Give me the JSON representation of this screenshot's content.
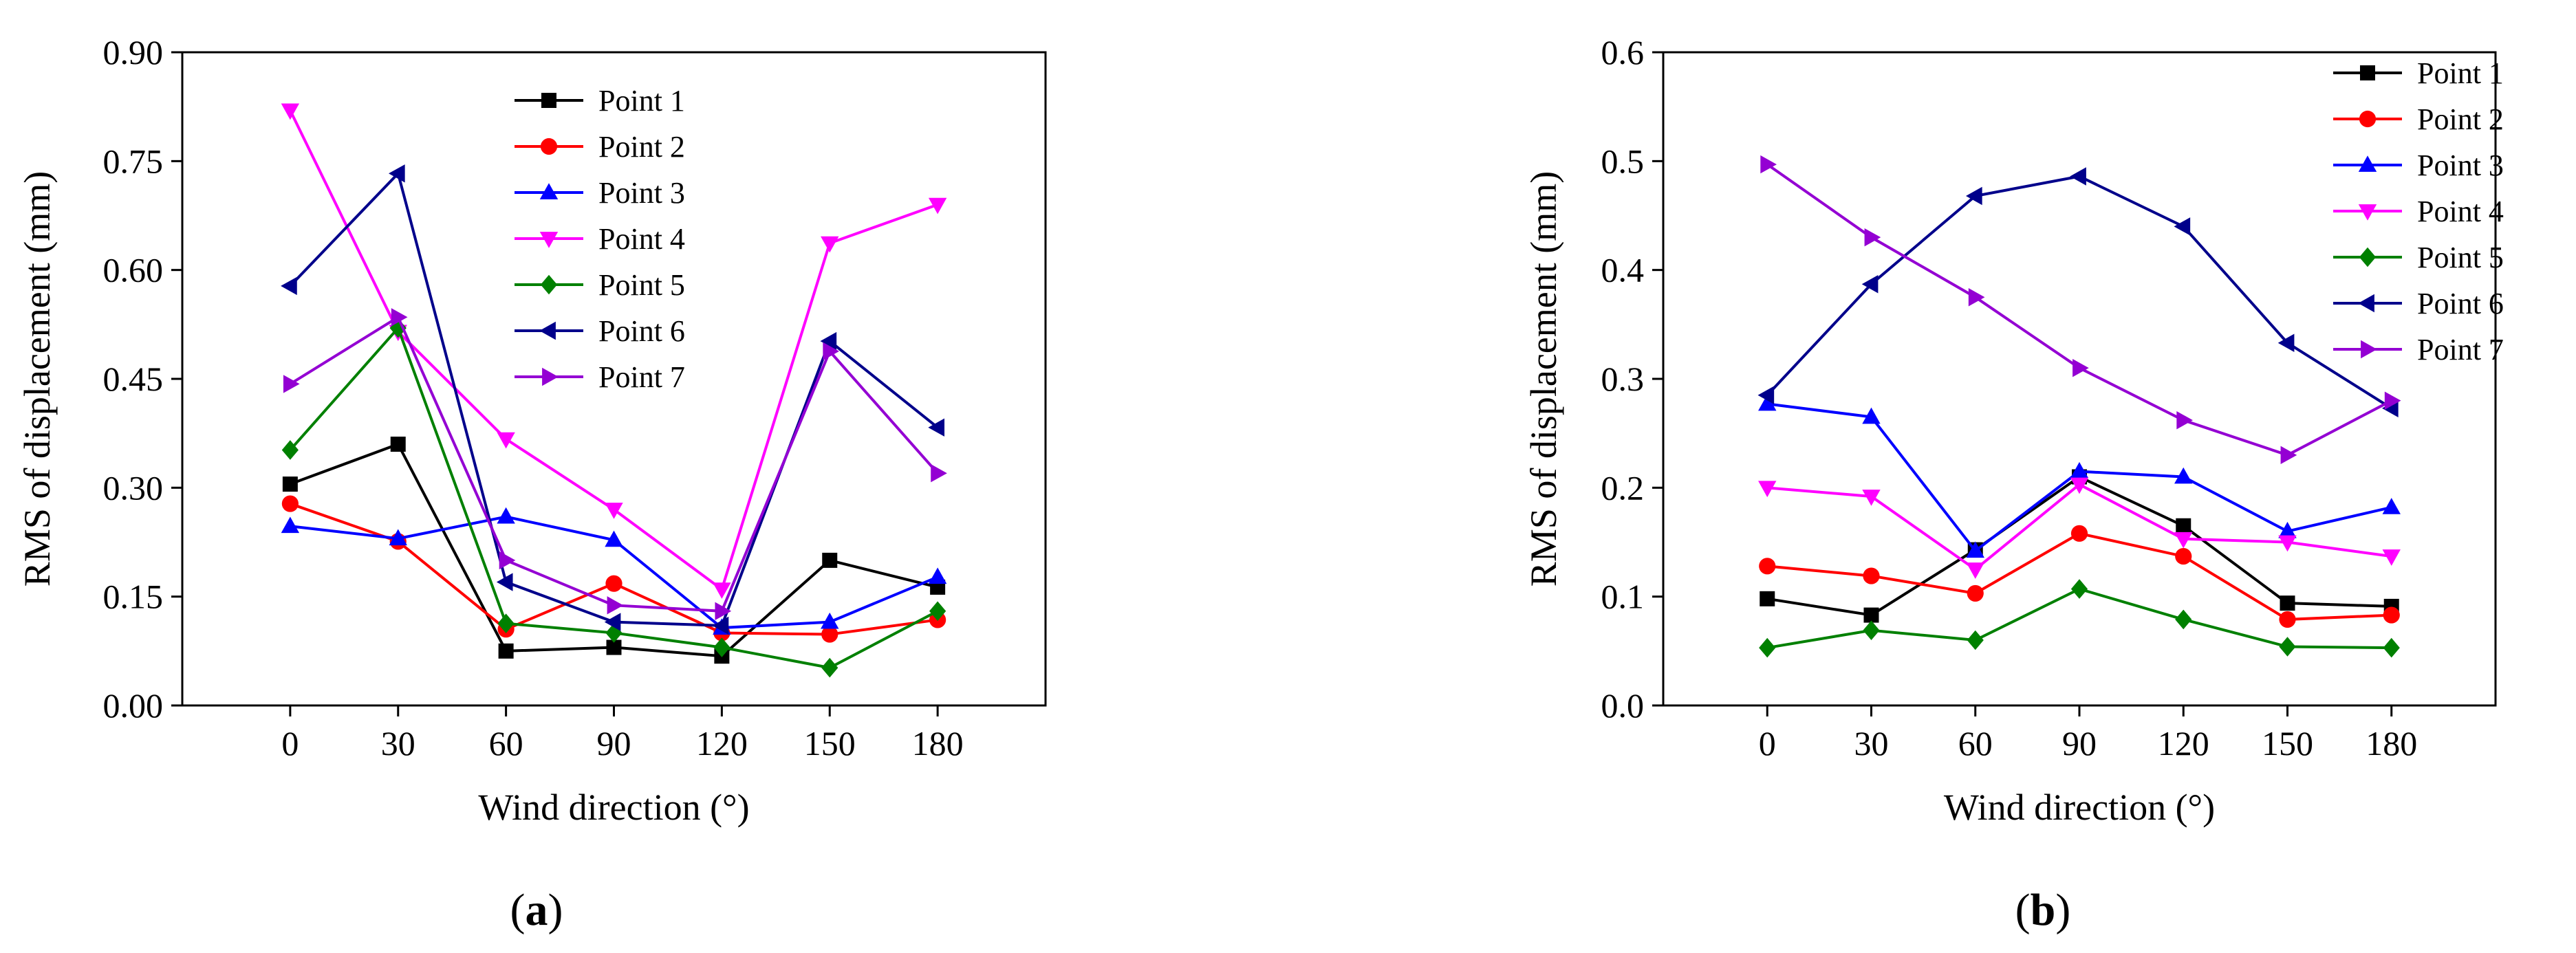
{
  "chart_data": [
    {
      "type": "line",
      "panel_label_open": "(",
      "panel_label": "a",
      "panel_label_close": ")",
      "xlabel": "Wind direction (°)",
      "ylabel": "RMS of displacement (mm)",
      "x": [
        0,
        30,
        60,
        90,
        120,
        150,
        180
      ],
      "xlim": [
        -30,
        210
      ],
      "ylim": [
        0,
        0.9
      ],
      "xticks": [
        "0",
        "30",
        "60",
        "90",
        "120",
        "150",
        "180"
      ],
      "yticks": [
        "0.00",
        "0.15",
        "0.30",
        "0.45",
        "0.60",
        "0.75",
        "0.90"
      ],
      "ytick_values": [
        0,
        0.15,
        0.3,
        0.45,
        0.6,
        0.75,
        0.9
      ],
      "legend_position": "top-center",
      "series": [
        {
          "name": "Point 1",
          "color": "#000000",
          "marker": "square",
          "values": [
            0.305,
            0.36,
            0.075,
            0.08,
            0.068,
            0.2,
            0.163
          ]
        },
        {
          "name": "Point 2",
          "color": "#ff0000",
          "marker": "circle",
          "values": [
            0.278,
            0.226,
            0.105,
            0.168,
            0.1,
            0.098,
            0.118
          ]
        },
        {
          "name": "Point 3",
          "color": "#0000ff",
          "marker": "triangle-up",
          "values": [
            0.247,
            0.23,
            0.26,
            0.228,
            0.107,
            0.115,
            0.177
          ]
        },
        {
          "name": "Point 4",
          "color": "#ff00ff",
          "marker": "triangle-down",
          "values": [
            0.82,
            0.515,
            0.367,
            0.27,
            0.16,
            0.637,
            0.69
          ]
        },
        {
          "name": "Point 5",
          "color": "#008000",
          "marker": "diamond",
          "values": [
            0.352,
            0.52,
            0.113,
            0.1,
            0.08,
            0.052,
            0.13
          ]
        },
        {
          "name": "Point 6",
          "color": "#00008b",
          "marker": "triangle-left",
          "values": [
            0.578,
            0.733,
            0.17,
            0.115,
            0.11,
            0.502,
            0.383
          ]
        },
        {
          "name": "Point 7",
          "color": "#9400d3",
          "marker": "triangle-right",
          "values": [
            0.443,
            0.535,
            0.2,
            0.138,
            0.13,
            0.488,
            0.32
          ]
        }
      ]
    },
    {
      "type": "line",
      "panel_label_open": "(",
      "panel_label": "b",
      "panel_label_close": ")",
      "xlabel": "Wind direction (°)",
      "ylabel": "RMS of displacement (mm)",
      "x": [
        0,
        30,
        60,
        90,
        120,
        150,
        180
      ],
      "xlim": [
        -30,
        210
      ],
      "ylim": [
        0,
        0.6
      ],
      "xticks": [
        "0",
        "30",
        "60",
        "90",
        "120",
        "150",
        "180"
      ],
      "yticks": [
        "0.0",
        "0.1",
        "0.2",
        "0.3",
        "0.4",
        "0.5",
        "0.6"
      ],
      "ytick_values": [
        0,
        0.1,
        0.2,
        0.3,
        0.4,
        0.5,
        0.6
      ],
      "legend_position": "top-right",
      "series": [
        {
          "name": "Point 1",
          "color": "#000000",
          "marker": "square",
          "values": [
            0.098,
            0.083,
            0.143,
            0.21,
            0.165,
            0.094,
            0.091
          ]
        },
        {
          "name": "Point 2",
          "color": "#ff0000",
          "marker": "circle",
          "values": [
            0.128,
            0.119,
            0.103,
            0.158,
            0.137,
            0.079,
            0.083
          ]
        },
        {
          "name": "Point 3",
          "color": "#0000ff",
          "marker": "triangle-up",
          "values": [
            0.277,
            0.265,
            0.142,
            0.215,
            0.21,
            0.16,
            0.182
          ]
        },
        {
          "name": "Point 4",
          "color": "#ff00ff",
          "marker": "triangle-down",
          "values": [
            0.2,
            0.192,
            0.125,
            0.203,
            0.153,
            0.15,
            0.137
          ]
        },
        {
          "name": "Point 5",
          "color": "#008000",
          "marker": "diamond",
          "values": [
            0.053,
            0.069,
            0.06,
            0.107,
            0.079,
            0.054,
            0.053
          ]
        },
        {
          "name": "Point 6",
          "color": "#00008b",
          "marker": "triangle-left",
          "values": [
            0.285,
            0.387,
            0.468,
            0.486,
            0.44,
            0.333,
            0.273
          ]
        },
        {
          "name": "Point 7",
          "color": "#9400d3",
          "marker": "triangle-right",
          "values": [
            0.497,
            0.43,
            0.375,
            0.31,
            0.262,
            0.23,
            0.28
          ]
        }
      ]
    }
  ]
}
